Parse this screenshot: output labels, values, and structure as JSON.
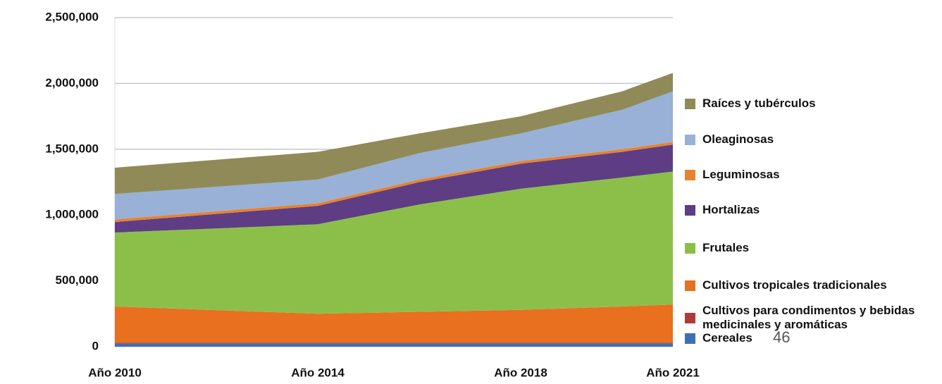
{
  "chart_data": {
    "type": "stacked_area",
    "x": [
      2010,
      2014,
      2016,
      2018,
      2020,
      2021
    ],
    "xlim": [
      2010,
      2021
    ],
    "xticks": [
      {
        "value": 2010,
        "label": "Año 2010"
      },
      {
        "value": 2014,
        "label": "Año 2014"
      },
      {
        "value": 2018,
        "label": "Año 2018"
      },
      {
        "value": 2021,
        "label": "Año 2021"
      }
    ],
    "ylim": [
      0,
      2500000
    ],
    "yticks": [
      {
        "value": 0,
        "label": "0"
      },
      {
        "value": 500000,
        "label": "500,000"
      },
      {
        "value": 1000000,
        "label": "1,000,000"
      },
      {
        "value": 1500000,
        "label": "1,500,000"
      },
      {
        "value": 2000000,
        "label": "2,000,000"
      },
      {
        "value": 2500000,
        "label": "2,500,000"
      }
    ],
    "grid": true,
    "series": [
      {
        "name": "Cereales",
        "color": "#3f6fb0",
        "values": [
          25000,
          25000,
          25000,
          25000,
          25000,
          25000
        ]
      },
      {
        "name": "Cultivos para condimentos y bebidas medicinales y aromáticas",
        "color": "#b03a3a",
        "values": [
          5000,
          5000,
          5000,
          5000,
          5000,
          5000
        ]
      },
      {
        "name": "Cultivos tropicales tradicionales",
        "color": "#e8701e",
        "values": [
          275000,
          220000,
          235000,
          250000,
          275000,
          290000
        ]
      },
      {
        "name": "Frutales",
        "color": "#8cbf4a",
        "values": [
          562000,
          680000,
          815000,
          920000,
          980000,
          1010000
        ]
      },
      {
        "name": "Hortalizas",
        "color": "#5e3d84",
        "values": [
          80000,
          140000,
          170000,
          190000,
          195000,
          205000
        ]
      },
      {
        "name": "Leguminosas",
        "color": "#e8822f",
        "values": [
          20000,
          20000,
          20000,
          20000,
          20000,
          20000
        ]
      },
      {
        "name": "Oleaginosas",
        "color": "#99b1d6",
        "values": [
          193000,
          180000,
          200000,
          210000,
          300000,
          385000
        ]
      },
      {
        "name": "Raíces y tubérculos",
        "color": "#8f8a58",
        "values": [
          200000,
          210000,
          150000,
          130000,
          140000,
          140000
        ]
      }
    ]
  },
  "page_number": "46"
}
